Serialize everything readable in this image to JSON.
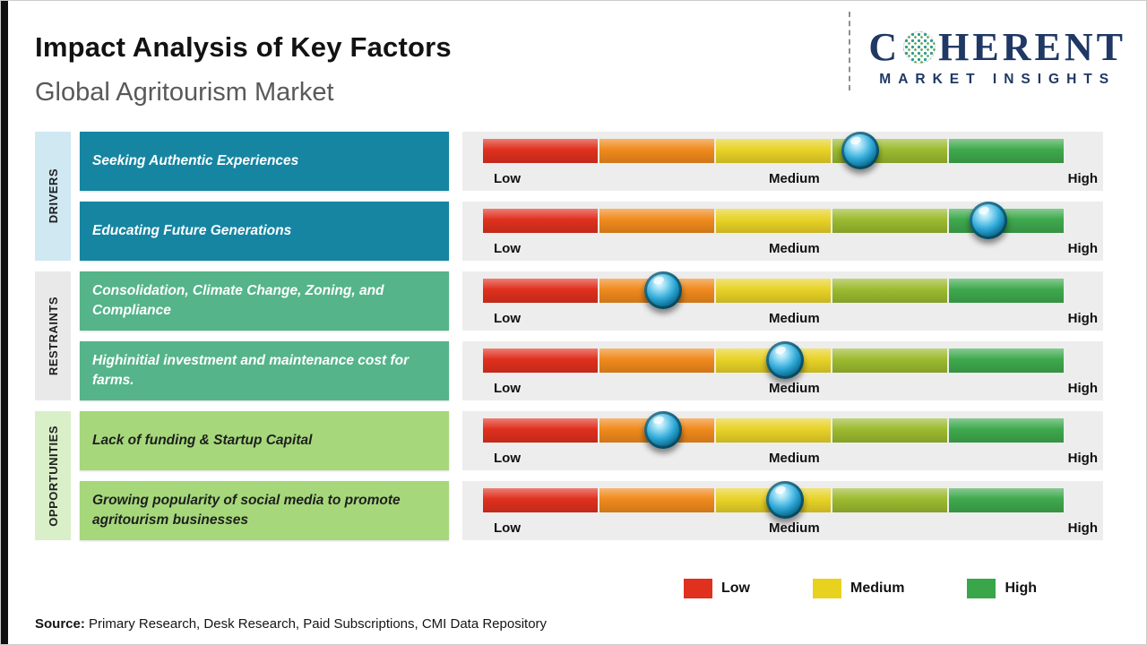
{
  "header": {
    "title": "Impact Analysis of Key Factors",
    "subtitle": "Global Agritourism Market"
  },
  "logo": {
    "prefix": "C",
    "suffix": "HERENT",
    "tagline": "MARKET INSIGHTS"
  },
  "chart_data": {
    "type": "table",
    "title": "Impact Analysis of Key Factors",
    "subtitle": "Global Agritourism Market",
    "scale": [
      "Low",
      "Medium",
      "High"
    ],
    "scale_range": [
      0,
      1
    ],
    "segment_colors": [
      "#e0301e",
      "#f08a1d",
      "#e8d227",
      "#9cba2f",
      "#3ea94d"
    ],
    "groups": [
      {
        "category": "DRIVERS",
        "sidebar_color": "#cfe8f2",
        "box_color": "#1585a2",
        "text_color": "#ffffff",
        "factors": [
          {
            "label": "Seeking Authentic Experiences",
            "position": 0.65,
            "impact": "Medium-High"
          },
          {
            "label": "Educating Future Generations",
            "position": 0.87,
            "impact": "High"
          }
        ]
      },
      {
        "category": "RESTRAINTS",
        "sidebar_color": "#e9e9e9",
        "box_color": "#55b489",
        "text_color": "#ffffff",
        "factors": [
          {
            "label": "Consolidation, Climate Change, Zoning, and Compliance",
            "position": 0.31,
            "impact": "Low-Medium"
          },
          {
            "label": "Highinitial investment and maintenance cost for farms.",
            "position": 0.52,
            "impact": "Medium"
          }
        ]
      },
      {
        "category": "OPPORTUNITIES",
        "sidebar_color": "#d8efc7",
        "box_color": "#a6d87b",
        "text_color": "#1f1f1f",
        "factors": [
          {
            "label": "Lack of funding & Startup Capital",
            "position": 0.31,
            "impact": "Low-Medium"
          },
          {
            "label": "Growing popularity of social media to promote agritourism businesses",
            "position": 0.52,
            "impact": "Medium"
          }
        ]
      }
    ]
  },
  "legend": [
    {
      "label": "Low",
      "color": "#e0301e"
    },
    {
      "label": "Medium",
      "color": "#e8d21d"
    },
    {
      "label": "High",
      "color": "#3aa64a"
    }
  ],
  "source": {
    "label": "Source:",
    "text": "Primary Research, Desk Research, Paid Subscriptions, CMI Data Repository"
  }
}
